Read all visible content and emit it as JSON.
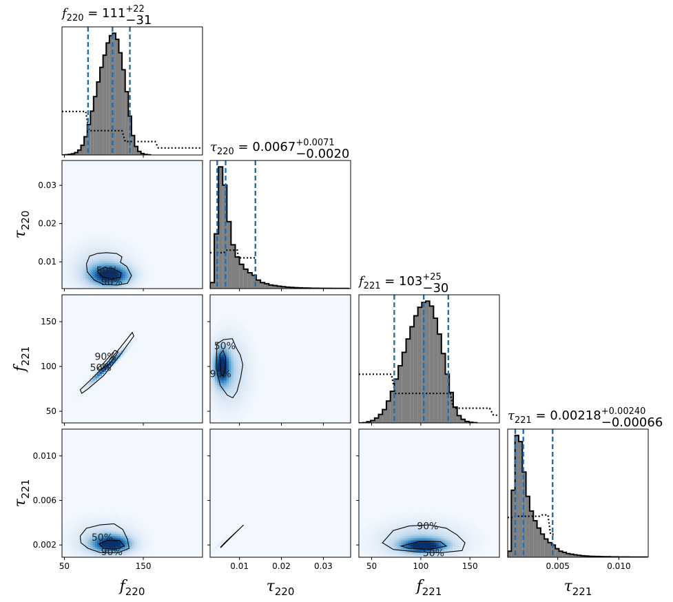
{
  "colors": {
    "hist_fill": "#808080",
    "hist_edge": "#000000",
    "quantile_line": "#1f6fb4",
    "prior_line": "#000000",
    "density_low": "#f3f8fe",
    "density_high": "#08306b"
  },
  "titles": {
    "f220": {
      "sym": "f",
      "sub": "220",
      "val": " = 111",
      "sup": "+22",
      "low": "−31"
    },
    "tau220": {
      "sym": "τ",
      "sub": "220",
      "val": " = 0.0067",
      "sup": "+0.0071",
      "low": "−0.0020"
    },
    "f221": {
      "sym": "f",
      "sub": "221",
      "val": " = 103",
      "sup": "+25",
      "low": "−30"
    },
    "tau221": {
      "sym": "τ",
      "sub": "221",
      "val": " = 0.00218",
      "sup": "+0.00240",
      "low": "−0.00066"
    }
  },
  "axis_labels": {
    "f220": {
      "sym": "f",
      "sub": "220"
    },
    "tau220": {
      "sym": "τ",
      "sub": "220"
    },
    "f221": {
      "sym": "f",
      "sub": "221"
    },
    "tau221": {
      "sym": "τ",
      "sub": "221"
    }
  },
  "contour_labels": [
    "50%",
    "90%"
  ],
  "chart_data": {
    "type": "corner",
    "parameters": [
      "f220",
      "tau220",
      "f221",
      "tau221"
    ],
    "ranges": {
      "f220": [
        47,
        225
      ],
      "tau220": [
        0.003,
        0.0365
      ],
      "f221": [
        37,
        180
      ],
      "tau221": [
        0.0009,
        0.0124
      ]
    },
    "ticks": {
      "f220": {
        "values": [
          50,
          150
        ],
        "labels": [
          "50",
          "150"
        ]
      },
      "tau220": {
        "values": [
          0.01,
          0.02,
          0.03
        ],
        "labels": [
          "0.01",
          "0.02",
          "0.03"
        ]
      },
      "f221": {
        "values": [
          50,
          100,
          150
        ],
        "labels": [
          "50",
          "100",
          "150"
        ]
      },
      "tau221": {
        "values": [
          0.002,
          0.006,
          0.01
        ],
        "labels": [
          "0.002",
          "0.006",
          "0.010"
        ]
      },
      "tau221_bottom": {
        "values": [
          0.005,
          0.01
        ],
        "labels": [
          "0.005",
          "0.010"
        ]
      }
    },
    "quantiles": {
      "f220": [
        80,
        111,
        133
      ],
      "tau220": [
        0.0047,
        0.0067,
        0.0138
      ],
      "f221": [
        73,
        103,
        128
      ],
      "tau221": [
        0.00152,
        0.00218,
        0.00458
      ]
    },
    "marginals": {
      "f220": {
        "centers": [
          49,
          53,
          57,
          61,
          65,
          69,
          73,
          77,
          81,
          85,
          89,
          93,
          97,
          101,
          105,
          109,
          113,
          117,
          121,
          125,
          129,
          133,
          137,
          141,
          145,
          149,
          153,
          157
        ],
        "heights": [
          0,
          0.002,
          0.005,
          0.01,
          0.02,
          0.04,
          0.08,
          0.15,
          0.25,
          0.36,
          0.48,
          0.6,
          0.72,
          0.82,
          0.92,
          0.98,
          1.0,
          0.95,
          0.84,
          0.7,
          0.52,
          0.32,
          0.16,
          0.07,
          0.03,
          0.012,
          0.004,
          0.001
        ],
        "prior": {
          "x": [
            47,
            77,
            81,
            123,
            127,
            165,
            169,
            225
          ],
          "y": [
            0.34,
            0.34,
            0.19,
            0.19,
            0.105,
            0.105,
            0.055,
            0.055
          ]
        }
      },
      "tau220": {
        "centers": [
          0.0035,
          0.0045,
          0.0055,
          0.0065,
          0.0075,
          0.0085,
          0.0095,
          0.0105,
          0.0115,
          0.0125,
          0.0135,
          0.0145,
          0.0155,
          0.0165,
          0.0175,
          0.0185,
          0.0195,
          0.0205,
          0.0215,
          0.0225,
          0.0235,
          0.0245,
          0.0255,
          0.0265,
          0.0275,
          0.0285,
          0.0295,
          0.0305,
          0.0315,
          0.0325,
          0.0335,
          0.0345,
          0.0355
        ],
        "heights": [
          0.05,
          0.45,
          1.0,
          0.85,
          0.55,
          0.36,
          0.26,
          0.2,
          0.16,
          0.13,
          0.11,
          0.07,
          0.05,
          0.04,
          0.03,
          0.025,
          0.02,
          0.015,
          0.012,
          0.01,
          0.008,
          0.006,
          0.005,
          0.004,
          0.003,
          0.003,
          0.002,
          0.002,
          0.002,
          0.001,
          0.001,
          0.001,
          0.001
        ],
        "prior": {
          "x": [
            0.003,
            0.0063,
            0.0068,
            0.0095,
            0.0097,
            0.0138
          ],
          "y": [
            0.28,
            0.28,
            0.3,
            0.3,
            0.24,
            0.24
          ]
        }
      },
      "f221": {
        "centers": [
          39,
          43,
          47,
          51,
          55,
          59,
          63,
          67,
          71,
          75,
          79,
          83,
          87,
          91,
          95,
          99,
          103,
          107,
          111,
          115,
          119,
          123,
          127,
          131,
          135,
          139,
          143,
          147,
          151,
          155
        ],
        "heights": [
          0,
          0.002,
          0.01,
          0.02,
          0.04,
          0.07,
          0.11,
          0.18,
          0.26,
          0.36,
          0.47,
          0.58,
          0.69,
          0.79,
          0.88,
          0.95,
          0.99,
          1.0,
          0.96,
          0.86,
          0.73,
          0.57,
          0.4,
          0.25,
          0.13,
          0.06,
          0.03,
          0.012,
          0.005,
          0.002
        ],
        "prior": {
          "x": [
            37,
            70,
            74,
            130,
            133,
            170,
            174,
            180
          ],
          "y": [
            0.38,
            0.38,
            0.23,
            0.23,
            0.115,
            0.115,
            0.06,
            0.06
          ]
        }
      },
      "tau221": {
        "centers": [
          0.00105,
          0.00135,
          0.00165,
          0.00195,
          0.00225,
          0.00255,
          0.00285,
          0.00315,
          0.00345,
          0.00375,
          0.00405,
          0.00435,
          0.00465,
          0.00495,
          0.00525,
          0.00555,
          0.00585,
          0.00615,
          0.00645,
          0.00675,
          0.00705,
          0.00735,
          0.00765,
          0.00795,
          0.00825,
          0.00855,
          0.00885,
          0.00915,
          0.00945,
          0.00975,
          0.01005,
          0.01035,
          0.01065,
          0.01095,
          0.01125,
          0.01155,
          0.01185,
          0.01215
        ],
        "heights": [
          0.05,
          0.55,
          1.0,
          0.95,
          0.7,
          0.5,
          0.38,
          0.3,
          0.24,
          0.19,
          0.15,
          0.12,
          0.1,
          0.07,
          0.05,
          0.04,
          0.03,
          0.025,
          0.02,
          0.015,
          0.012,
          0.01,
          0.008,
          0.007,
          0.006,
          0.005,
          0.004,
          0.004,
          0.003,
          0.003,
          0.002,
          0.002,
          0.002,
          0.001,
          0.001,
          0.001,
          0.001,
          0.001
        ],
        "prior": {
          "x": [
            0.0009,
            0.0013,
            0.0016,
            0.0035,
            0.0037,
            0.0042,
            0.0044,
            0.0048
          ],
          "y": [
            0.31,
            0.31,
            0.32,
            0.32,
            0.33,
            0.33,
            0.18,
            0.18
          ]
        }
      }
    },
    "density_2d": [
      {
        "x": "f220",
        "y": "tau220",
        "peaks": [
          {
            "cx": 108,
            "cy": 0.0065,
            "sx": 17,
            "sy": 0.0018,
            "a": 1.0
          },
          {
            "cx": 96,
            "cy": 0.0085,
            "sx": 24,
            "sy": 0.0038,
            "a": 0.25
          }
        ],
        "c90": [
          [
            78,
            0.0095
          ],
          [
            82,
            0.0115
          ],
          [
            92,
            0.0122
          ],
          [
            103,
            0.0124
          ],
          [
            116,
            0.0122
          ],
          [
            123,
            0.0113
          ],
          [
            121,
            0.0099
          ],
          [
            129,
            0.0088
          ],
          [
            135,
            0.0064
          ],
          [
            130,
            0.0044
          ],
          [
            117,
            0.0039
          ],
          [
            100,
            0.0041
          ],
          [
            88,
            0.0052
          ],
          [
            79,
            0.0074
          ]
        ],
        "c50": [
          [
            92,
            0.0076
          ],
          [
            100,
            0.0085
          ],
          [
            112,
            0.0082
          ],
          [
            122,
            0.0071
          ],
          [
            121,
            0.0059
          ],
          [
            110,
            0.0055
          ],
          [
            98,
            0.0061
          ]
        ],
        "labels": [
          {
            "text": "50%",
            "x": 104,
            "y": 0.0078
          },
          {
            "text": "90%",
            "x": 110,
            "y": 0.0048
          }
        ]
      },
      {
        "x": "f220",
        "y": "f221",
        "peaks": [
          {
            "cx": 104,
            "cy": 100,
            "sx": 14,
            "sy": 12,
            "a": 1.0,
            "rho": 0.97
          }
        ],
        "c90": [
          [
            72,
            70
          ],
          [
            80,
            75
          ],
          [
            100,
            90
          ],
          [
            120,
            112
          ],
          [
            138,
            134
          ],
          [
            136,
            138
          ],
          [
            118,
            118
          ],
          [
            98,
            98
          ],
          [
            82,
            84
          ],
          [
            70,
            74
          ]
        ],
        "c50": [
          [
            96,
            96
          ],
          [
            108,
            104
          ],
          [
            118,
            116
          ],
          [
            114,
            118
          ],
          [
            100,
            104
          ],
          [
            92,
            98
          ]
        ],
        "labels": [
          {
            "text": "90%",
            "x": 102,
            "y": 111
          },
          {
            "text": "50%",
            "x": 96,
            "y": 99
          }
        ]
      },
      {
        "x": "tau220",
        "y": "f221",
        "peaks": [
          {
            "cx": 0.0058,
            "cy": 100,
            "sx": 0.0012,
            "sy": 13,
            "a": 1.0
          },
          {
            "cx": 0.0075,
            "cy": 95,
            "sx": 0.003,
            "sy": 25,
            "a": 0.3
          }
        ],
        "c90": [
          [
            0.0046,
            125
          ],
          [
            0.0062,
            130
          ],
          [
            0.0083,
            131
          ],
          [
            0.0092,
            121
          ],
          [
            0.0102,
            113
          ],
          [
            0.0108,
            102
          ],
          [
            0.0103,
            88
          ],
          [
            0.0094,
            72
          ],
          [
            0.0084,
            65
          ],
          [
            0.0071,
            68
          ],
          [
            0.0054,
            79
          ],
          [
            0.0045,
            98
          ]
        ],
        "c50": [
          [
            0.0053,
            113
          ],
          [
            0.0061,
            118
          ],
          [
            0.0067,
            110
          ],
          [
            0.0066,
            97
          ],
          [
            0.0062,
            89
          ],
          [
            0.0056,
            92
          ]
        ],
        "labels": [
          {
            "text": "50%",
            "x": 0.0065,
            "y": 123
          },
          {
            "text": "90%",
            "x": 0.0055,
            "y": 92
          }
        ]
      },
      {
        "x": "f220",
        "y": "tau221",
        "peaks": [
          {
            "cx": 110,
            "cy": 0.0021,
            "sx": 16,
            "sy": 0.0005,
            "a": 1.0
          },
          {
            "cx": 100,
            "cy": 0.0025,
            "sx": 26,
            "sy": 0.0011,
            "a": 0.25
          }
        ],
        "c90": [
          [
            70,
            0.0028
          ],
          [
            78,
            0.0035
          ],
          [
            95,
            0.0038
          ],
          [
            113,
            0.0039
          ],
          [
            124,
            0.0034
          ],
          [
            130,
            0.0025
          ],
          [
            132,
            0.0017
          ],
          [
            118,
            0.0013
          ],
          [
            96,
            0.0013
          ],
          [
            80,
            0.0017
          ],
          [
            71,
            0.0022
          ]
        ],
        "c50": [
          [
            94,
            0.0021
          ],
          [
            104,
            0.0024
          ],
          [
            120,
            0.0024
          ],
          [
            126,
            0.0019
          ],
          [
            114,
            0.0016
          ],
          [
            100,
            0.0017
          ]
        ],
        "labels": [
          {
            "text": "50%",
            "x": 98,
            "y": 0.0027
          },
          {
            "text": "90%",
            "x": 110,
            "y": 0.0014
          }
        ]
      },
      {
        "x": "tau220",
        "y": "tau221",
        "peaks": [
          {
            "cx": 0.0061,
            "cy": 0.00228,
            "sx": 0.0014,
            "sy": 0.00045,
            "a": 0.25,
            "rho": 0.995
          }
        ],
        "c90": [
          [
            0.0055,
            0.00175
          ],
          [
            0.0068,
            0.00225
          ],
          [
            0.0092,
            0.00315
          ],
          [
            0.011,
            0.0038
          ],
          [
            0.0093,
            0.0032
          ],
          [
            0.0069,
            0.00235
          ],
          [
            0.0056,
            0.00185
          ]
        ],
        "c50": [],
        "labels": []
      },
      {
        "x": "f221",
        "y": "tau221",
        "peaks": [
          {
            "cx": 103,
            "cy": 0.00195,
            "sx": 15,
            "sy": 0.0004,
            "a": 1.0
          },
          {
            "cx": 100,
            "cy": 0.0024,
            "sx": 28,
            "sy": 0.0011,
            "a": 0.3
          }
        ],
        "c90": [
          [
            61,
            0.0022
          ],
          [
            72,
            0.0033
          ],
          [
            88,
            0.0037
          ],
          [
            108,
            0.0038
          ],
          [
            126,
            0.0035
          ],
          [
            137,
            0.0029
          ],
          [
            145,
            0.0022
          ],
          [
            142,
            0.0015
          ],
          [
            120,
            0.0013
          ],
          [
            94,
            0.0014
          ],
          [
            72,
            0.0016
          ]
        ],
        "c50": [
          [
            80,
            0.0019
          ],
          [
            98,
            0.0023
          ],
          [
            120,
            0.0023
          ],
          [
            126,
            0.0019
          ],
          [
            108,
            0.0016
          ],
          [
            88,
            0.0017
          ]
        ],
        "labels": [
          {
            "text": "90%",
            "x": 107,
            "y": 0.0037
          },
          {
            "text": "50%",
            "x": 113,
            "y": 0.0013
          }
        ]
      }
    ]
  }
}
